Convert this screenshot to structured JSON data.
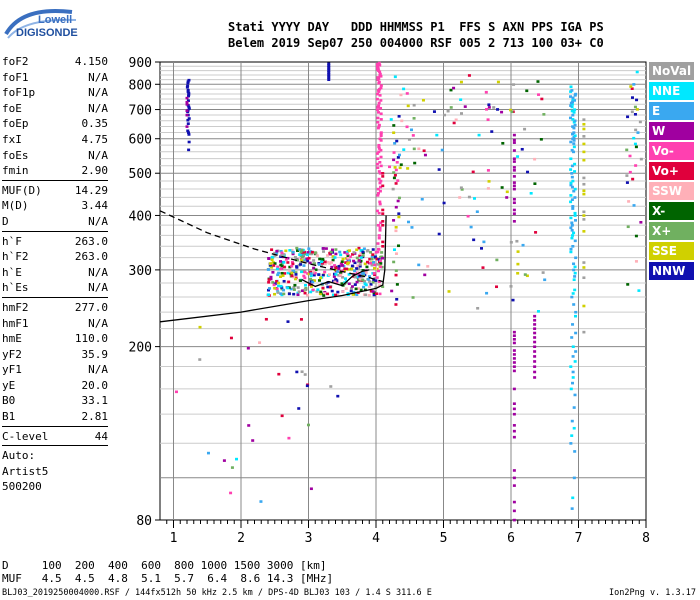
{
  "logo": {
    "line1": "Lowell",
    "line2": "DIGISONDE"
  },
  "header": {
    "line1": "Stati YYYY DAY   DDD HHMMSS P1  FFS S AXN PPS IGA PS",
    "line2": "Belem 2019 Sep07 250 004000 RSF 005 2 713 100 03+ C0"
  },
  "params": [
    [
      {
        "k": "foF2",
        "v": "4.150"
      },
      {
        "k": "foF1",
        "v": "N/A"
      },
      {
        "k": "foF1p",
        "v": "N/A"
      },
      {
        "k": "foE",
        "v": "N/A"
      },
      {
        "k": "foEp",
        "v": "0.35"
      },
      {
        "k": "fxI",
        "v": "4.75"
      },
      {
        "k": "foEs",
        "v": "N/A"
      },
      {
        "k": "fmin",
        "v": "2.90"
      }
    ],
    [
      {
        "k": "MUF(D)",
        "v": "14.29"
      },
      {
        "k": "M(D)",
        "v": "3.44"
      },
      {
        "k": "D",
        "v": "N/A"
      }
    ],
    [
      {
        "k": "h`F",
        "v": "263.0"
      },
      {
        "k": "h`F2",
        "v": "263.0"
      },
      {
        "k": "h`E",
        "v": "N/A"
      },
      {
        "k": "h`Es",
        "v": "N/A"
      }
    ],
    [
      {
        "k": "hmF2",
        "v": "277.0"
      },
      {
        "k": "hmF1",
        "v": "N/A"
      },
      {
        "k": "hmE",
        "v": "110.0"
      },
      {
        "k": "yF2",
        "v": "35.9"
      },
      {
        "k": "yF1",
        "v": "N/A"
      },
      {
        "k": "yE",
        "v": "20.0"
      },
      {
        "k": "B0",
        "v": "33.1"
      },
      {
        "k": "B1",
        "v": "2.81"
      }
    ],
    [
      {
        "k": "C-level",
        "v": "44"
      }
    ],
    [
      {
        "k": "Auto:",
        "v": ""
      },
      {
        "k": "Artist5",
        "v": ""
      },
      {
        "k": "500200",
        "v": ""
      }
    ]
  ],
  "legend": [
    {
      "label": "NoVal",
      "color": "#a0a0a0"
    },
    {
      "label": "NNE",
      "color": "#00e8ff"
    },
    {
      "label": "E",
      "color": "#3aa8f0"
    },
    {
      "label": "W",
      "color": "#a000a0"
    },
    {
      "label": "Vo-",
      "color": "#ff40b0"
    },
    {
      "label": "Vo+",
      "color": "#e0003c"
    },
    {
      "label": "SSW",
      "color": "#ffb0b8"
    },
    {
      "label": "X-",
      "color": "#006400"
    },
    {
      "label": "X+",
      "color": "#70b060"
    },
    {
      "label": "SSE",
      "color": "#d0d000"
    },
    {
      "label": "NNW",
      "color": "#1010b0"
    }
  ],
  "muf_table": {
    "row1": "D     100  200  400  600  800 1000 1500 3000 [km]",
    "row2": "MUF   4.5  4.5  4.8  5.1  5.7  6.4  8.6 14.3 [MHz]"
  },
  "footer": "BLJ03_2019250004000.RSF / 144fx512h 50 kHz 2.5 km / DPS-4D BLJ03 103 / 1.4 S 311.6 E",
  "version": "Ion2Png v. 1.3.17",
  "chart_data": {
    "type": "scatter",
    "title": "",
    "xlabel": "",
    "ylabel": "",
    "xlim": [
      0.8,
      8.0
    ],
    "ylim": [
      80,
      900
    ],
    "yscale": "log",
    "x_ticks": [
      "1",
      "2",
      "3",
      "4",
      "5",
      "6",
      "7",
      "8"
    ],
    "y_ticks": [
      "80",
      "200",
      "300",
      "400",
      "500",
      "600",
      "700",
      "800",
      "900"
    ],
    "grid": true,
    "legend_position": "right",
    "series": [
      {
        "name": "profile",
        "style": "solid",
        "x": [
          0.8,
          2.0,
          3.0,
          3.5,
          3.8,
          4.0,
          4.1,
          4.13,
          4.15
        ],
        "y": [
          228,
          240,
          255,
          262,
          268,
          272,
          277,
          300,
          400
        ]
      },
      {
        "name": "topside",
        "style": "dashed",
        "x": [
          0.8,
          1.5,
          2.2,
          3.0,
          3.6,
          3.9,
          4.1
        ],
        "y": [
          410,
          365,
          335,
          310,
          295,
          288,
          282
        ]
      },
      {
        "name": "trace",
        "style": "solid",
        "x": [
          2.9,
          3.1,
          3.3,
          3.5,
          3.65,
          3.8,
          3.9
        ],
        "y": [
          285,
          275,
          282,
          276,
          290,
          298,
          300
        ]
      }
    ]
  }
}
